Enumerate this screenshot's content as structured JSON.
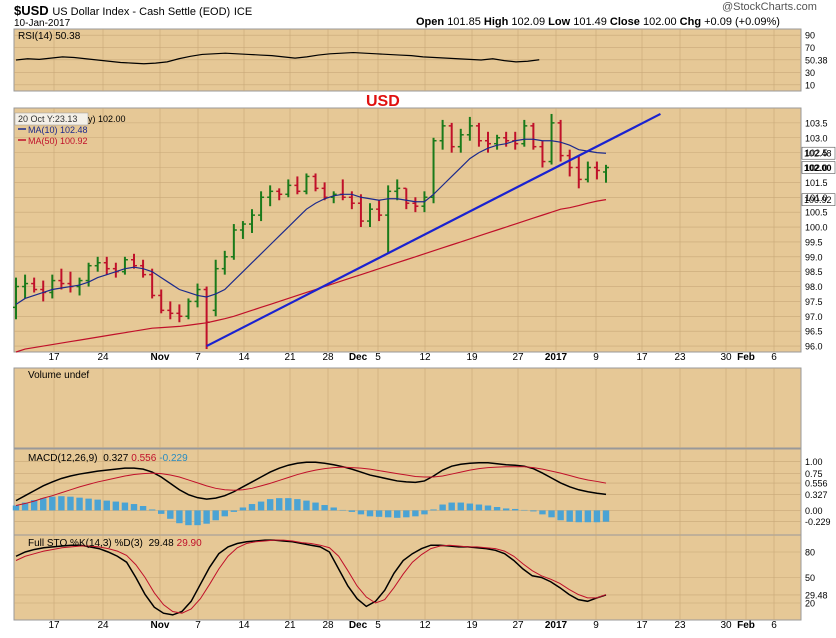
{
  "header": {
    "symbol": "$USD",
    "name": "US Dollar Index - Cash Settle (EOD)",
    "exchange": "ICE",
    "date": "10-Jan-2017",
    "watermark": "@StockCharts.com",
    "open_label": "Open",
    "open": "101.85",
    "high_label": "High",
    "high": "102.09",
    "low_label": "Low",
    "low": "101.49",
    "close_label": "Close",
    "close": "102.00",
    "chg_label": "Chg",
    "chg": "+0.09 (+0.09%)"
  },
  "colors": {
    "panel_bg": "#e6c896",
    "up": "#1a7a1a",
    "down": "#c0102a",
    "ma10": "#1c2a8c",
    "ma50": "#c0102a",
    "trendline": "#1a22d0",
    "macd_hist": "#4aa3d4"
  },
  "x_axis": {
    "labels": [
      "17",
      "24",
      "Nov",
      "7",
      "14",
      "21",
      "28",
      "Dec",
      "5",
      "12",
      "19",
      "27",
      "2017",
      "9",
      "17",
      "23",
      "30",
      "Feb",
      "6"
    ]
  },
  "chart_data": [
    {
      "type": "line",
      "panel": "rsi",
      "title": "RSI(14) 50.38",
      "y_ticks": [
        "90",
        "70",
        "50.38",
        "30",
        "10"
      ],
      "ylim": [
        0,
        100
      ],
      "series": [
        {
          "name": "RSI(14)",
          "values": [
            50,
            52,
            51,
            53,
            55,
            54,
            52,
            50,
            48,
            46,
            45,
            44,
            45,
            47,
            52,
            56,
            59,
            60,
            61,
            60,
            59,
            58,
            57,
            55,
            53,
            55,
            58,
            60,
            61,
            62,
            61,
            60,
            59,
            58,
            57,
            55,
            54,
            53,
            52,
            51,
            50,
            52,
            49,
            47,
            48,
            50.38
          ]
        }
      ]
    },
    {
      "type": "bar",
      "panel": "price",
      "annotation": "USD",
      "legend": [
        "20 Oct Y:23.13",
        "MA(10) 102.48",
        "MA(50) 100.92"
      ],
      "legend_value": "y) 102.00",
      "y_ticks": [
        "103.5",
        "103.0",
        "102.5",
        "102.0",
        "101.5",
        "101.0",
        "100.5",
        "100.0",
        "99.5",
        "99.0",
        "98.5",
        "98.0",
        "97.5",
        "97.0",
        "96.5",
        "96.0"
      ],
      "y_badges": [
        "102.48",
        "102.00",
        "100.92"
      ],
      "ylim": [
        95.8,
        104.0
      ],
      "ohlc": [
        {
          "o": 97.3,
          "h": 98.3,
          "l": 96.9,
          "c": 98.0
        },
        {
          "o": 98.0,
          "h": 98.4,
          "l": 97.6,
          "c": 98.1
        },
        {
          "o": 98.1,
          "h": 98.3,
          "l": 97.8,
          "c": 97.9
        },
        {
          "o": 97.9,
          "h": 98.2,
          "l": 97.5,
          "c": 97.8
        },
        {
          "o": 97.8,
          "h": 98.4,
          "l": 97.6,
          "c": 98.2
        },
        {
          "o": 98.2,
          "h": 98.6,
          "l": 97.9,
          "c": 98.1
        },
        {
          "o": 98.1,
          "h": 98.5,
          "l": 97.8,
          "c": 98.0
        },
        {
          "o": 98.0,
          "h": 98.3,
          "l": 97.7,
          "c": 98.2
        },
        {
          "o": 98.2,
          "h": 98.8,
          "l": 98.0,
          "c": 98.7
        },
        {
          "o": 98.7,
          "h": 99.0,
          "l": 98.5,
          "c": 98.8
        },
        {
          "o": 98.8,
          "h": 99.0,
          "l": 98.4,
          "c": 98.6
        },
        {
          "o": 98.6,
          "h": 98.8,
          "l": 98.3,
          "c": 98.5
        },
        {
          "o": 98.5,
          "h": 99.0,
          "l": 98.4,
          "c": 98.9
        },
        {
          "o": 98.9,
          "h": 99.1,
          "l": 98.6,
          "c": 98.7
        },
        {
          "o": 98.7,
          "h": 98.9,
          "l": 98.3,
          "c": 98.4
        },
        {
          "o": 98.4,
          "h": 98.6,
          "l": 97.6,
          "c": 97.7
        },
        {
          "o": 97.7,
          "h": 97.9,
          "l": 97.1,
          "c": 97.2
        },
        {
          "o": 97.2,
          "h": 97.5,
          "l": 96.9,
          "c": 97.1
        },
        {
          "o": 97.1,
          "h": 97.4,
          "l": 96.8,
          "c": 97.0
        },
        {
          "o": 97.0,
          "h": 97.6,
          "l": 96.9,
          "c": 97.5
        },
        {
          "o": 97.5,
          "h": 98.1,
          "l": 97.3,
          "c": 97.9
        },
        {
          "o": 97.9,
          "h": 98.0,
          "l": 95.9,
          "c": 96.8
        },
        {
          "o": 97.2,
          "h": 98.9,
          "l": 97.0,
          "c": 98.6
        },
        {
          "o": 98.6,
          "h": 99.2,
          "l": 98.4,
          "c": 99.0
        },
        {
          "o": 99.0,
          "h": 100.1,
          "l": 98.9,
          "c": 99.9
        },
        {
          "o": 99.9,
          "h": 100.2,
          "l": 99.6,
          "c": 100.1
        },
        {
          "o": 100.1,
          "h": 100.6,
          "l": 99.8,
          "c": 100.4
        },
        {
          "o": 100.4,
          "h": 101.2,
          "l": 100.2,
          "c": 101.0
        },
        {
          "o": 101.0,
          "h": 101.4,
          "l": 100.7,
          "c": 101.2
        },
        {
          "o": 101.2,
          "h": 101.3,
          "l": 100.9,
          "c": 101.1
        },
        {
          "o": 101.1,
          "h": 101.6,
          "l": 101.0,
          "c": 101.4
        },
        {
          "o": 101.4,
          "h": 101.7,
          "l": 101.1,
          "c": 101.2
        },
        {
          "o": 101.2,
          "h": 101.8,
          "l": 101.1,
          "c": 101.7
        },
        {
          "o": 101.7,
          "h": 101.8,
          "l": 101.2,
          "c": 101.3
        },
        {
          "o": 101.3,
          "h": 101.5,
          "l": 100.9,
          "c": 101.0
        },
        {
          "o": 101.0,
          "h": 101.2,
          "l": 100.8,
          "c": 101.1
        },
        {
          "o": 101.1,
          "h": 101.6,
          "l": 100.9,
          "c": 101.0
        },
        {
          "o": 101.0,
          "h": 101.2,
          "l": 100.6,
          "c": 100.8
        },
        {
          "o": 100.8,
          "h": 101.1,
          "l": 100.0,
          "c": 100.2
        },
        {
          "o": 100.2,
          "h": 100.8,
          "l": 100.0,
          "c": 100.6
        },
        {
          "o": 100.6,
          "h": 100.9,
          "l": 100.2,
          "c": 100.4
        },
        {
          "o": 100.4,
          "h": 101.4,
          "l": 99.1,
          "c": 101.2
        },
        {
          "o": 101.2,
          "h": 101.6,
          "l": 100.9,
          "c": 101.3
        },
        {
          "o": 101.3,
          "h": 101.3,
          "l": 100.6,
          "c": 100.8
        },
        {
          "o": 100.8,
          "h": 101.0,
          "l": 100.5,
          "c": 100.7
        },
        {
          "o": 100.7,
          "h": 101.2,
          "l": 100.5,
          "c": 101.0
        },
        {
          "o": 101.0,
          "h": 103.0,
          "l": 100.8,
          "c": 102.9
        },
        {
          "o": 102.9,
          "h": 103.6,
          "l": 102.6,
          "c": 103.4
        },
        {
          "o": 103.4,
          "h": 103.5,
          "l": 102.5,
          "c": 102.7
        },
        {
          "o": 102.7,
          "h": 103.3,
          "l": 102.5,
          "c": 103.1
        },
        {
          "o": 103.1,
          "h": 103.7,
          "l": 102.9,
          "c": 103.4
        },
        {
          "o": 103.4,
          "h": 103.5,
          "l": 102.7,
          "c": 102.9
        },
        {
          "o": 102.9,
          "h": 103.2,
          "l": 102.5,
          "c": 102.8
        },
        {
          "o": 102.8,
          "h": 103.1,
          "l": 102.6,
          "c": 103.0
        },
        {
          "o": 103.0,
          "h": 103.2,
          "l": 102.7,
          "c": 102.9
        },
        {
          "o": 102.9,
          "h": 103.2,
          "l": 102.6,
          "c": 102.8
        },
        {
          "o": 102.8,
          "h": 103.6,
          "l": 102.7,
          "c": 103.4
        },
        {
          "o": 103.4,
          "h": 103.5,
          "l": 102.6,
          "c": 102.7
        },
        {
          "o": 102.7,
          "h": 102.9,
          "l": 102.0,
          "c": 102.2
        },
        {
          "o": 102.2,
          "h": 103.8,
          "l": 102.1,
          "c": 103.5
        },
        {
          "o": 103.5,
          "h": 103.6,
          "l": 102.2,
          "c": 102.4
        },
        {
          "o": 102.4,
          "h": 102.6,
          "l": 101.7,
          "c": 102.0
        },
        {
          "o": 102.0,
          "h": 102.4,
          "l": 101.3,
          "c": 101.6
        },
        {
          "o": 101.6,
          "h": 102.2,
          "l": 101.5,
          "c": 102.0
        },
        {
          "o": 102.0,
          "h": 102.2,
          "l": 101.6,
          "c": 101.9
        },
        {
          "o": 101.85,
          "h": 102.09,
          "l": 101.49,
          "c": 102.0
        }
      ],
      "ma10": [
        97.4,
        97.6,
        97.7,
        97.8,
        97.9,
        97.95,
        98.0,
        98.05,
        98.15,
        98.3,
        98.4,
        98.5,
        98.6,
        98.65,
        98.6,
        98.5,
        98.3,
        98.1,
        97.9,
        97.8,
        97.7,
        97.65,
        97.75,
        97.9,
        98.2,
        98.5,
        98.8,
        99.1,
        99.4,
        99.7,
        100.0,
        100.3,
        100.6,
        100.8,
        100.95,
        101.05,
        101.1,
        101.1,
        101.0,
        100.95,
        100.9,
        100.95,
        100.95,
        100.9,
        100.85,
        100.85,
        101.1,
        101.4,
        101.7,
        102.0,
        102.3,
        102.5,
        102.65,
        102.75,
        102.8,
        102.9,
        102.95,
        102.95,
        102.9,
        102.9,
        102.85,
        102.75,
        102.6,
        102.55,
        102.5,
        102.48
      ],
      "ma50": [
        95.8,
        95.9,
        95.95,
        96.0,
        96.05,
        96.1,
        96.15,
        96.2,
        96.25,
        96.3,
        96.35,
        96.4,
        96.45,
        96.5,
        96.55,
        96.6,
        96.62,
        96.64,
        96.66,
        96.7,
        96.74,
        96.78,
        96.85,
        96.92,
        97.0,
        97.1,
        97.2,
        97.3,
        97.4,
        97.5,
        97.6,
        97.7,
        97.8,
        97.9,
        98.0,
        98.1,
        98.2,
        98.3,
        98.4,
        98.5,
        98.6,
        98.7,
        98.8,
        98.9,
        99.0,
        99.1,
        99.2,
        99.3,
        99.4,
        99.5,
        99.6,
        99.7,
        99.8,
        99.9,
        100.0,
        100.1,
        100.2,
        100.3,
        100.4,
        100.5,
        100.6,
        100.65,
        100.72,
        100.8,
        100.87,
        100.92
      ],
      "trendline": {
        "start": {
          "bar": 21,
          "y": 96.0
        },
        "end": {
          "bar": 71,
          "y": 103.8
        }
      }
    },
    {
      "type": "bar",
      "panel": "volume",
      "title": "Volume undef",
      "values": []
    },
    {
      "type": "line",
      "panel": "macd",
      "title": "MACD(12,26,9)",
      "title_values": [
        "0.327",
        "0.556",
        "-0.229"
      ],
      "y_ticks": [
        "1.00",
        "0.75",
        "0.556",
        "0.327",
        "0.00",
        "-0.229"
      ],
      "ylim": [
        -0.5,
        1.25
      ],
      "series": [
        {
          "name": "MACD",
          "values": [
            0.2,
            0.3,
            0.4,
            0.5,
            0.58,
            0.65,
            0.7,
            0.74,
            0.77,
            0.8,
            0.82,
            0.84,
            0.86,
            0.86,
            0.84,
            0.78,
            0.68,
            0.55,
            0.42,
            0.32,
            0.26,
            0.23,
            0.25,
            0.3,
            0.38,
            0.48,
            0.58,
            0.68,
            0.78,
            0.86,
            0.92,
            0.96,
            0.98,
            0.98,
            0.96,
            0.93,
            0.89,
            0.84,
            0.78,
            0.72,
            0.68,
            0.64,
            0.6,
            0.58,
            0.57,
            0.6,
            0.7,
            0.82,
            0.9,
            0.94,
            0.96,
            0.97,
            0.97,
            0.95,
            0.93,
            0.92,
            0.9,
            0.85,
            0.76,
            0.66,
            0.56,
            0.48,
            0.42,
            0.38,
            0.35,
            0.327
          ]
        },
        {
          "name": "Signal",
          "values": [
            0.1,
            0.14,
            0.19,
            0.25,
            0.3,
            0.36,
            0.42,
            0.48,
            0.53,
            0.58,
            0.62,
            0.66,
            0.7,
            0.73,
            0.75,
            0.76,
            0.75,
            0.72,
            0.68,
            0.62,
            0.56,
            0.5,
            0.45,
            0.42,
            0.41,
            0.42,
            0.45,
            0.5,
            0.55,
            0.61,
            0.67,
            0.73,
            0.78,
            0.82,
            0.85,
            0.87,
            0.88,
            0.87,
            0.86,
            0.84,
            0.81,
            0.78,
            0.75,
            0.72,
            0.69,
            0.68,
            0.68,
            0.7,
            0.74,
            0.78,
            0.82,
            0.85,
            0.87,
            0.88,
            0.89,
            0.89,
            0.89,
            0.87,
            0.84,
            0.8,
            0.76,
            0.71,
            0.66,
            0.62,
            0.59,
            0.556
          ]
        }
      ]
    },
    {
      "type": "line",
      "panel": "sto",
      "title": "Full STO %K(14,3) %D(3)",
      "title_values": [
        "29.48",
        "29.90"
      ],
      "y_ticks": [
        "80",
        "50",
        "29.48",
        "20"
      ],
      "ylim": [
        0,
        100
      ],
      "series": [
        {
          "name": "%K",
          "values": [
            75,
            80,
            83,
            85,
            86,
            87,
            88,
            88,
            86,
            84,
            80,
            75,
            68,
            50,
            30,
            15,
            8,
            6,
            10,
            22,
            42,
            62,
            78,
            86,
            90,
            92,
            93,
            94,
            94,
            93,
            92,
            90,
            88,
            86,
            80,
            60,
            40,
            25,
            16,
            22,
            35,
            55,
            70,
            78,
            84,
            88,
            88,
            87,
            86,
            86,
            85,
            84,
            82,
            78,
            70,
            60,
            52,
            50,
            45,
            38,
            30,
            24,
            22,
            26,
            29.48
          ]
        },
        {
          "name": "%D",
          "values": [
            70,
            75,
            78,
            81,
            83,
            85,
            86,
            87,
            87,
            86,
            84,
            81,
            76,
            65,
            50,
            32,
            18,
            10,
            8,
            13,
            25,
            42,
            60,
            75,
            85,
            90,
            92,
            93,
            94,
            94,
            93,
            91,
            90,
            88,
            85,
            75,
            58,
            40,
            27,
            20,
            24,
            38,
            54,
            68,
            77,
            84,
            87,
            88,
            87,
            86,
            86,
            85,
            84,
            81,
            75,
            66,
            58,
            52,
            48,
            43,
            36,
            30,
            26,
            26,
            29.9
          ]
        }
      ]
    }
  ]
}
